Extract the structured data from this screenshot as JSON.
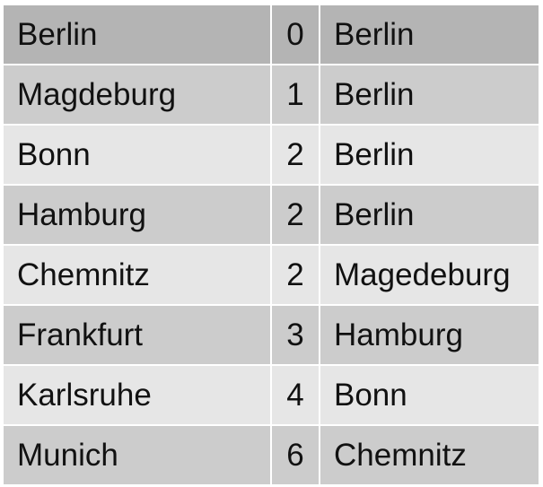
{
  "table": {
    "rows": [
      {
        "city": "Berlin",
        "value": "0",
        "parent": "Berlin"
      },
      {
        "city": "Magdeburg",
        "value": "1",
        "parent": "Berlin"
      },
      {
        "city": "Bonn",
        "value": "2",
        "parent": "Berlin"
      },
      {
        "city": "Hamburg",
        "value": "2",
        "parent": "Berlin"
      },
      {
        "city": "Chemnitz",
        "value": "2",
        "parent": "Magedeburg"
      },
      {
        "city": "Frankfurt",
        "value": "3",
        "parent": "Hamburg"
      },
      {
        "city": "Karlsruhe",
        "value": "4",
        "parent": "Bonn"
      },
      {
        "city": "Munich",
        "value": "6",
        "parent": "Chemnitz"
      }
    ]
  },
  "colors": {
    "header_row": "#b4b4b4",
    "row_dark": "#cccccc",
    "row_light": "#e6e6e6",
    "text": "#111111"
  }
}
